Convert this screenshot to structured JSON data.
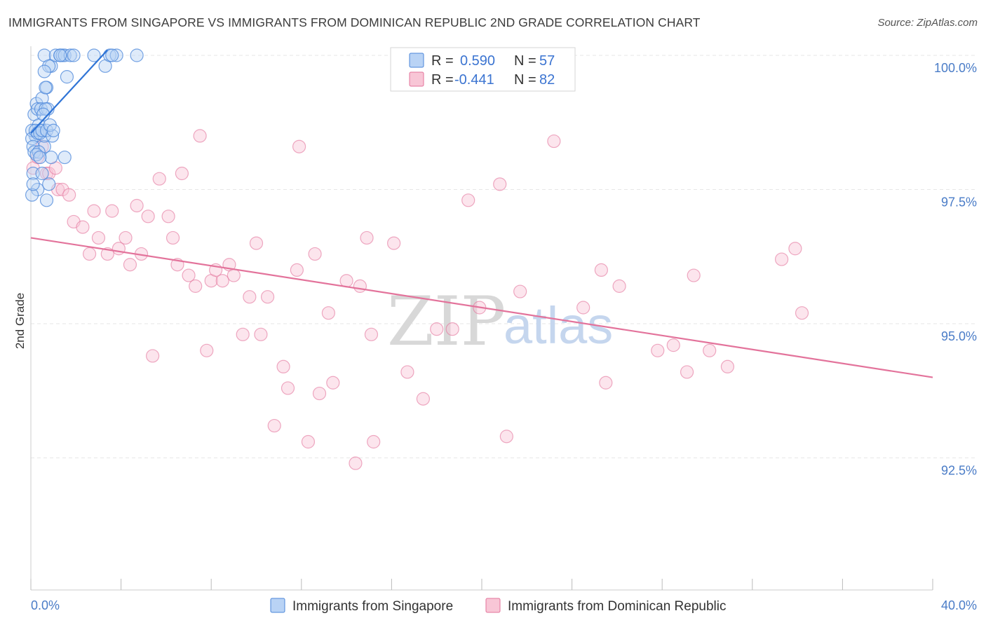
{
  "title": "IMMIGRANTS FROM SINGAPORE VS IMMIGRANTS FROM DOMINICAN REPUBLIC 2ND GRADE CORRELATION CHART",
  "source": "Source: ZipAtlas.com",
  "watermark": {
    "zip": "ZIP",
    "atlas": "atlas"
  },
  "colors": {
    "singapore": "#4a86d9",
    "singapore_fill": "#b9d3f5",
    "dominican": "#e3739b",
    "dominican_fill": "#f8c6d6",
    "axis_text": "#4a7cc7",
    "grid": "#e6e6e6"
  },
  "legend": {
    "rows": [
      {
        "r_label": "R =",
        "r_value": "0.590",
        "n_label": "N =",
        "n_value": "57"
      },
      {
        "r_label": "R =",
        "r_value": "-0.441",
        "n_label": "N =",
        "n_value": "82"
      }
    ]
  },
  "chart_data": {
    "type": "scatter",
    "title": "IMMIGRANTS FROM SINGAPORE VS IMMIGRANTS FROM DOMINICAN REPUBLIC 2ND GRADE CORRELATION CHART",
    "xlabel": "",
    "ylabel": "2nd Grade",
    "xlim": [
      0,
      40
    ],
    "ylim": [
      90.2,
      100.4
    ],
    "x_tick_labels": [
      "0.0%",
      "40.0%"
    ],
    "y_ticks": [
      {
        "value": 100.0,
        "label": "100.0%"
      },
      {
        "value": 97.5,
        "label": "97.5%"
      },
      {
        "value": 95.0,
        "label": "95.0%"
      },
      {
        "value": 92.5,
        "label": "92.5%"
      }
    ],
    "series": [
      {
        "name": "Immigrants from Singapore",
        "color": "#4a86d9",
        "R": 0.59,
        "N": 57,
        "trend": {
          "x": [
            0.0,
            3.4
          ],
          "y": [
            98.55,
            100.1
          ]
        },
        "points": [
          [
            0.15,
            98.9
          ],
          [
            0.25,
            99.1
          ],
          [
            0.35,
            98.7
          ],
          [
            0.5,
            99.2
          ],
          [
            0.7,
            99.4
          ],
          [
            0.2,
            98.5
          ],
          [
            0.4,
            98.6
          ],
          [
            0.6,
            98.3
          ],
          [
            0.9,
            98.1
          ],
          [
            0.1,
            97.8
          ],
          [
            0.3,
            97.5
          ],
          [
            0.8,
            97.6
          ],
          [
            0.5,
            97.8
          ],
          [
            0.3,
            99.0
          ],
          [
            0.45,
            99.0
          ],
          [
            0.6,
            98.5
          ],
          [
            0.05,
            98.6
          ],
          [
            0.05,
            98.45
          ],
          [
            0.1,
            98.3
          ],
          [
            0.15,
            98.2
          ],
          [
            0.2,
            98.6
          ],
          [
            0.3,
            98.55
          ],
          [
            0.4,
            98.55
          ],
          [
            0.5,
            98.6
          ],
          [
            0.7,
            98.6
          ],
          [
            0.95,
            98.5
          ],
          [
            0.85,
            98.7
          ],
          [
            0.75,
            99.0
          ],
          [
            0.65,
            99.0
          ],
          [
            0.55,
            98.9
          ],
          [
            0.35,
            98.2
          ],
          [
            0.25,
            98.15
          ],
          [
            1.5,
            98.1
          ],
          [
            0.7,
            97.3
          ],
          [
            0.05,
            97.4
          ],
          [
            0.1,
            97.6
          ],
          [
            0.9,
            99.8
          ],
          [
            1.6,
            99.6
          ],
          [
            3.3,
            99.8
          ],
          [
            0.6,
            100.0
          ],
          [
            1.1,
            100.0
          ],
          [
            1.3,
            100.0
          ],
          [
            1.4,
            100.0
          ],
          [
            1.5,
            100.0
          ],
          [
            1.75,
            100.0
          ],
          [
            1.9,
            100.0
          ],
          [
            2.8,
            100.0
          ],
          [
            3.5,
            100.0
          ],
          [
            3.8,
            100.0
          ],
          [
            4.7,
            100.0
          ],
          [
            0.8,
            99.8
          ],
          [
            0.6,
            99.7
          ],
          [
            0.65,
            99.4
          ],
          [
            1.3,
            100.0
          ],
          [
            3.6,
            100.0
          ],
          [
            1.0,
            98.6
          ],
          [
            0.4,
            98.1
          ]
        ]
      },
      {
        "name": "Immigrants from Dominican Republic",
        "color": "#e3739b",
        "R": -0.441,
        "N": 82,
        "trend": {
          "x": [
            0.0,
            40.0
          ],
          "y": [
            96.6,
            94.0
          ]
        },
        "points": [
          [
            0.1,
            97.9
          ],
          [
            0.3,
            98.1
          ],
          [
            0.5,
            98.3
          ],
          [
            0.7,
            97.8
          ],
          [
            0.8,
            97.8
          ],
          [
            1.1,
            97.9
          ],
          [
            1.2,
            97.5
          ],
          [
            1.4,
            97.5
          ],
          [
            1.7,
            97.4
          ],
          [
            1.9,
            96.9
          ],
          [
            2.3,
            96.8
          ],
          [
            2.6,
            96.3
          ],
          [
            2.8,
            97.1
          ],
          [
            3.0,
            96.6
          ],
          [
            3.4,
            96.3
          ],
          [
            3.6,
            97.1
          ],
          [
            3.9,
            96.4
          ],
          [
            4.2,
            96.6
          ],
          [
            4.4,
            96.1
          ],
          [
            4.7,
            97.2
          ],
          [
            4.9,
            96.3
          ],
          [
            5.2,
            97.0
          ],
          [
            5.4,
            94.4
          ],
          [
            5.7,
            97.7
          ],
          [
            6.1,
            97.0
          ],
          [
            6.3,
            96.6
          ],
          [
            6.5,
            96.1
          ],
          [
            6.7,
            97.8
          ],
          [
            7.0,
            95.9
          ],
          [
            7.3,
            95.7
          ],
          [
            7.5,
            98.5
          ],
          [
            7.8,
            94.5
          ],
          [
            8.0,
            95.8
          ],
          [
            8.2,
            96.0
          ],
          [
            8.5,
            95.8
          ],
          [
            8.8,
            96.1
          ],
          [
            9.0,
            95.9
          ],
          [
            9.4,
            94.8
          ],
          [
            9.7,
            95.5
          ],
          [
            10.0,
            96.5
          ],
          [
            10.2,
            94.8
          ],
          [
            10.5,
            95.5
          ],
          [
            10.8,
            93.1
          ],
          [
            11.2,
            94.2
          ],
          [
            11.4,
            93.8
          ],
          [
            11.8,
            96.0
          ],
          [
            11.9,
            98.3
          ],
          [
            12.3,
            92.8
          ],
          [
            12.6,
            96.3
          ],
          [
            12.8,
            93.7
          ],
          [
            13.2,
            95.2
          ],
          [
            13.4,
            93.9
          ],
          [
            14.0,
            95.8
          ],
          [
            14.4,
            92.4
          ],
          [
            14.6,
            95.7
          ],
          [
            14.9,
            96.6
          ],
          [
            15.1,
            94.8
          ],
          [
            15.2,
            92.8
          ],
          [
            16.1,
            96.5
          ],
          [
            16.7,
            94.1
          ],
          [
            17.4,
            93.6
          ],
          [
            18.0,
            94.9
          ],
          [
            18.7,
            94.9
          ],
          [
            19.4,
            97.3
          ],
          [
            19.9,
            95.3
          ],
          [
            20.8,
            97.6
          ],
          [
            21.1,
            92.9
          ],
          [
            21.7,
            95.6
          ],
          [
            23.2,
            98.4
          ],
          [
            24.5,
            95.3
          ],
          [
            25.3,
            96.0
          ],
          [
            25.5,
            93.9
          ],
          [
            26.1,
            95.7
          ],
          [
            27.8,
            94.5
          ],
          [
            28.5,
            94.6
          ],
          [
            29.1,
            94.1
          ],
          [
            29.4,
            95.9
          ],
          [
            30.1,
            94.5
          ],
          [
            30.9,
            94.2
          ],
          [
            33.3,
            96.2
          ],
          [
            33.9,
            96.4
          ],
          [
            34.2,
            95.2
          ]
        ]
      }
    ]
  },
  "bottom_legend": {
    "items": [
      {
        "label": "Immigrants from Singapore"
      },
      {
        "label": "Immigrants from Dominican Republic"
      }
    ]
  }
}
